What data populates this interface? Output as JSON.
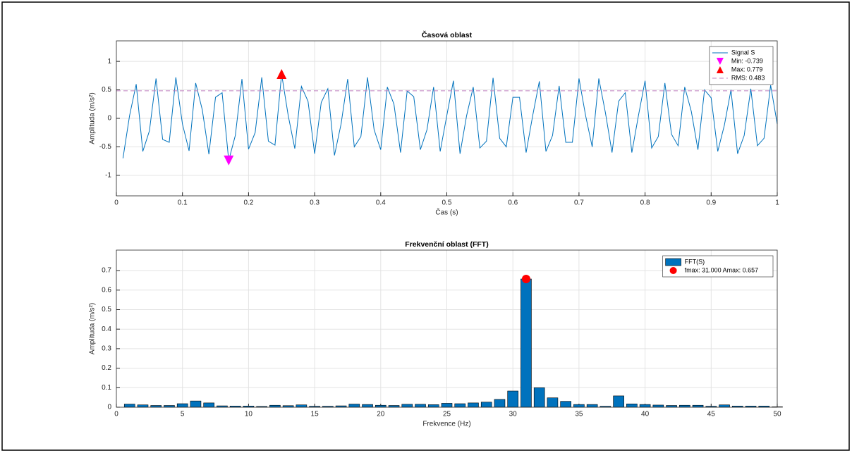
{
  "chart_data": [
    {
      "type": "line",
      "title": "Časová oblast",
      "xlabel": "Čas (s)",
      "ylabel": "Amplituda (m/s²)",
      "xlim": [
        0,
        1
      ],
      "xticks": [
        0,
        0.1,
        0.2,
        0.3,
        0.4,
        0.5,
        0.6,
        0.7,
        0.8,
        0.9,
        1
      ],
      "ylim": [
        -1.36,
        1.36
      ],
      "yticks": [
        -1,
        -0.5,
        0,
        0.5,
        1
      ],
      "grid": true,
      "legend": "northeast",
      "series": [
        {
          "name": "Signal S",
          "color": "#0072bd",
          "x": [
            0.01,
            0.02,
            0.03,
            0.04,
            0.05,
            0.06,
            0.07,
            0.08,
            0.09,
            0.1,
            0.11,
            0.12,
            0.13,
            0.14,
            0.15,
            0.16,
            0.17,
            0.18,
            0.19,
            0.2,
            0.21,
            0.22,
            0.23,
            0.24,
            0.25,
            0.26,
            0.27,
            0.28,
            0.29,
            0.3,
            0.31,
            0.32,
            0.33,
            0.34,
            0.35,
            0.36,
            0.37,
            0.38,
            0.39,
            0.4,
            0.41,
            0.42,
            0.43,
            0.44,
            0.45,
            0.46,
            0.47,
            0.48,
            0.49,
            0.5,
            0.51,
            0.52,
            0.53,
            0.54,
            0.55,
            0.56,
            0.57,
            0.58,
            0.59,
            0.6,
            0.61,
            0.62,
            0.63,
            0.64,
            0.65,
            0.66,
            0.67,
            0.68,
            0.69,
            0.7,
            0.71,
            0.72,
            0.73,
            0.74,
            0.75,
            0.76,
            0.77,
            0.78,
            0.79,
            0.8,
            0.81,
            0.82,
            0.83,
            0.84,
            0.85,
            0.86,
            0.87,
            0.88,
            0.89,
            0.9,
            0.91,
            0.92,
            0.93,
            0.94,
            0.95,
            0.96,
            0.97,
            0.98,
            0.99,
            1
          ],
          "values": [
            -0.7,
            0.05,
            0.6,
            -0.58,
            -0.22,
            0.7,
            -0.37,
            -0.42,
            0.72,
            -0.1,
            -0.57,
            0.62,
            0.15,
            -0.63,
            0.37,
            0.45,
            -0.739,
            -0.3,
            0.69,
            -0.54,
            -0.25,
            0.72,
            -0.4,
            -0.47,
            0.779,
            0.05,
            -0.53,
            0.56,
            0.3,
            -0.62,
            0.28,
            0.52,
            -0.65,
            -0.1,
            0.69,
            -0.5,
            -0.32,
            0.72,
            -0.2,
            -0.55,
            0.55,
            0.25,
            -0.6,
            0.48,
            0.38,
            -0.55,
            -0.2,
            0.55,
            -0.58,
            0.05,
            0.66,
            -0.62,
            0.05,
            0.55,
            -0.52,
            -0.4,
            0.71,
            -0.35,
            -0.5,
            0.37,
            0.37,
            -0.6,
            0.05,
            0.65,
            -0.58,
            -0.3,
            0.57,
            -0.42,
            -0.42,
            0.7,
            0.05,
            -0.5,
            0.7,
            0.1,
            -0.6,
            0.3,
            0.45,
            -0.6,
            0.05,
            0.66,
            -0.52,
            -0.32,
            0.62,
            -0.28,
            -0.48,
            0.55,
            0.12,
            -0.55,
            0.5,
            0.36,
            -0.58,
            -0.12,
            0.5,
            -0.62,
            -0.3,
            0.52,
            -0.48,
            -0.35,
            0.58,
            -0.1
          ]
        },
        {
          "name": "Min: -0.739",
          "color": "#ff00ff",
          "marker": "triangle-down",
          "x": [
            0.17
          ],
          "values": [
            -0.739
          ]
        },
        {
          "name": "Max: 0.779",
          "color": "#ff0000",
          "marker": "triangle-up",
          "x": [
            0.25
          ],
          "values": [
            0.779
          ]
        },
        {
          "name": "RMS: 0.483",
          "color": "#c080c0",
          "style": "dashed",
          "values": [
            0.483
          ]
        }
      ]
    },
    {
      "type": "bar",
      "title": "Frekvenční oblast (FFT)",
      "xlabel": "Frekvence (Hz)",
      "ylabel": "Amplituda (m/s²)",
      "xlim": [
        0,
        50
      ],
      "xticks": [
        0,
        5,
        10,
        15,
        20,
        25,
        30,
        35,
        40,
        45,
        50
      ],
      "ylim": [
        0,
        0.805
      ],
      "yticks": [
        0,
        0.1,
        0.2,
        0.3,
        0.4,
        0.5,
        0.6,
        0.7
      ],
      "grid": true,
      "legend": "northeast",
      "series": [
        {
          "name": "FFT(S)",
          "color": "#0072bd",
          "x": [
            1,
            2,
            3,
            4,
            5,
            6,
            7,
            8,
            9,
            10,
            11,
            12,
            13,
            14,
            15,
            16,
            17,
            18,
            19,
            20,
            21,
            22,
            23,
            24,
            25,
            26,
            27,
            28,
            29,
            30,
            31,
            32,
            33,
            34,
            35,
            36,
            37,
            38,
            39,
            40,
            41,
            42,
            43,
            44,
            45,
            46,
            47,
            48,
            49,
            50
          ],
          "values": [
            0.016,
            0.012,
            0.009,
            0.009,
            0.018,
            0.032,
            0.022,
            0.007,
            0.006,
            0.006,
            0.004,
            0.01,
            0.008,
            0.012,
            0.005,
            0.005,
            0.007,
            0.016,
            0.014,
            0.01,
            0.009,
            0.015,
            0.015,
            0.013,
            0.02,
            0.018,
            0.022,
            0.026,
            0.04,
            0.083,
            0.657,
            0.1,
            0.048,
            0.03,
            0.014,
            0.014,
            0.005,
            0.058,
            0.017,
            0.014,
            0.011,
            0.009,
            0.01,
            0.01,
            0.005,
            0.012,
            0.006,
            0.006,
            0.006,
            0.002
          ]
        },
        {
          "name": "fmax: 31.000 Amax: 0.657",
          "color": "#ff0000",
          "marker": "circle",
          "x": [
            31
          ],
          "values": [
            0.657
          ]
        }
      ]
    }
  ]
}
